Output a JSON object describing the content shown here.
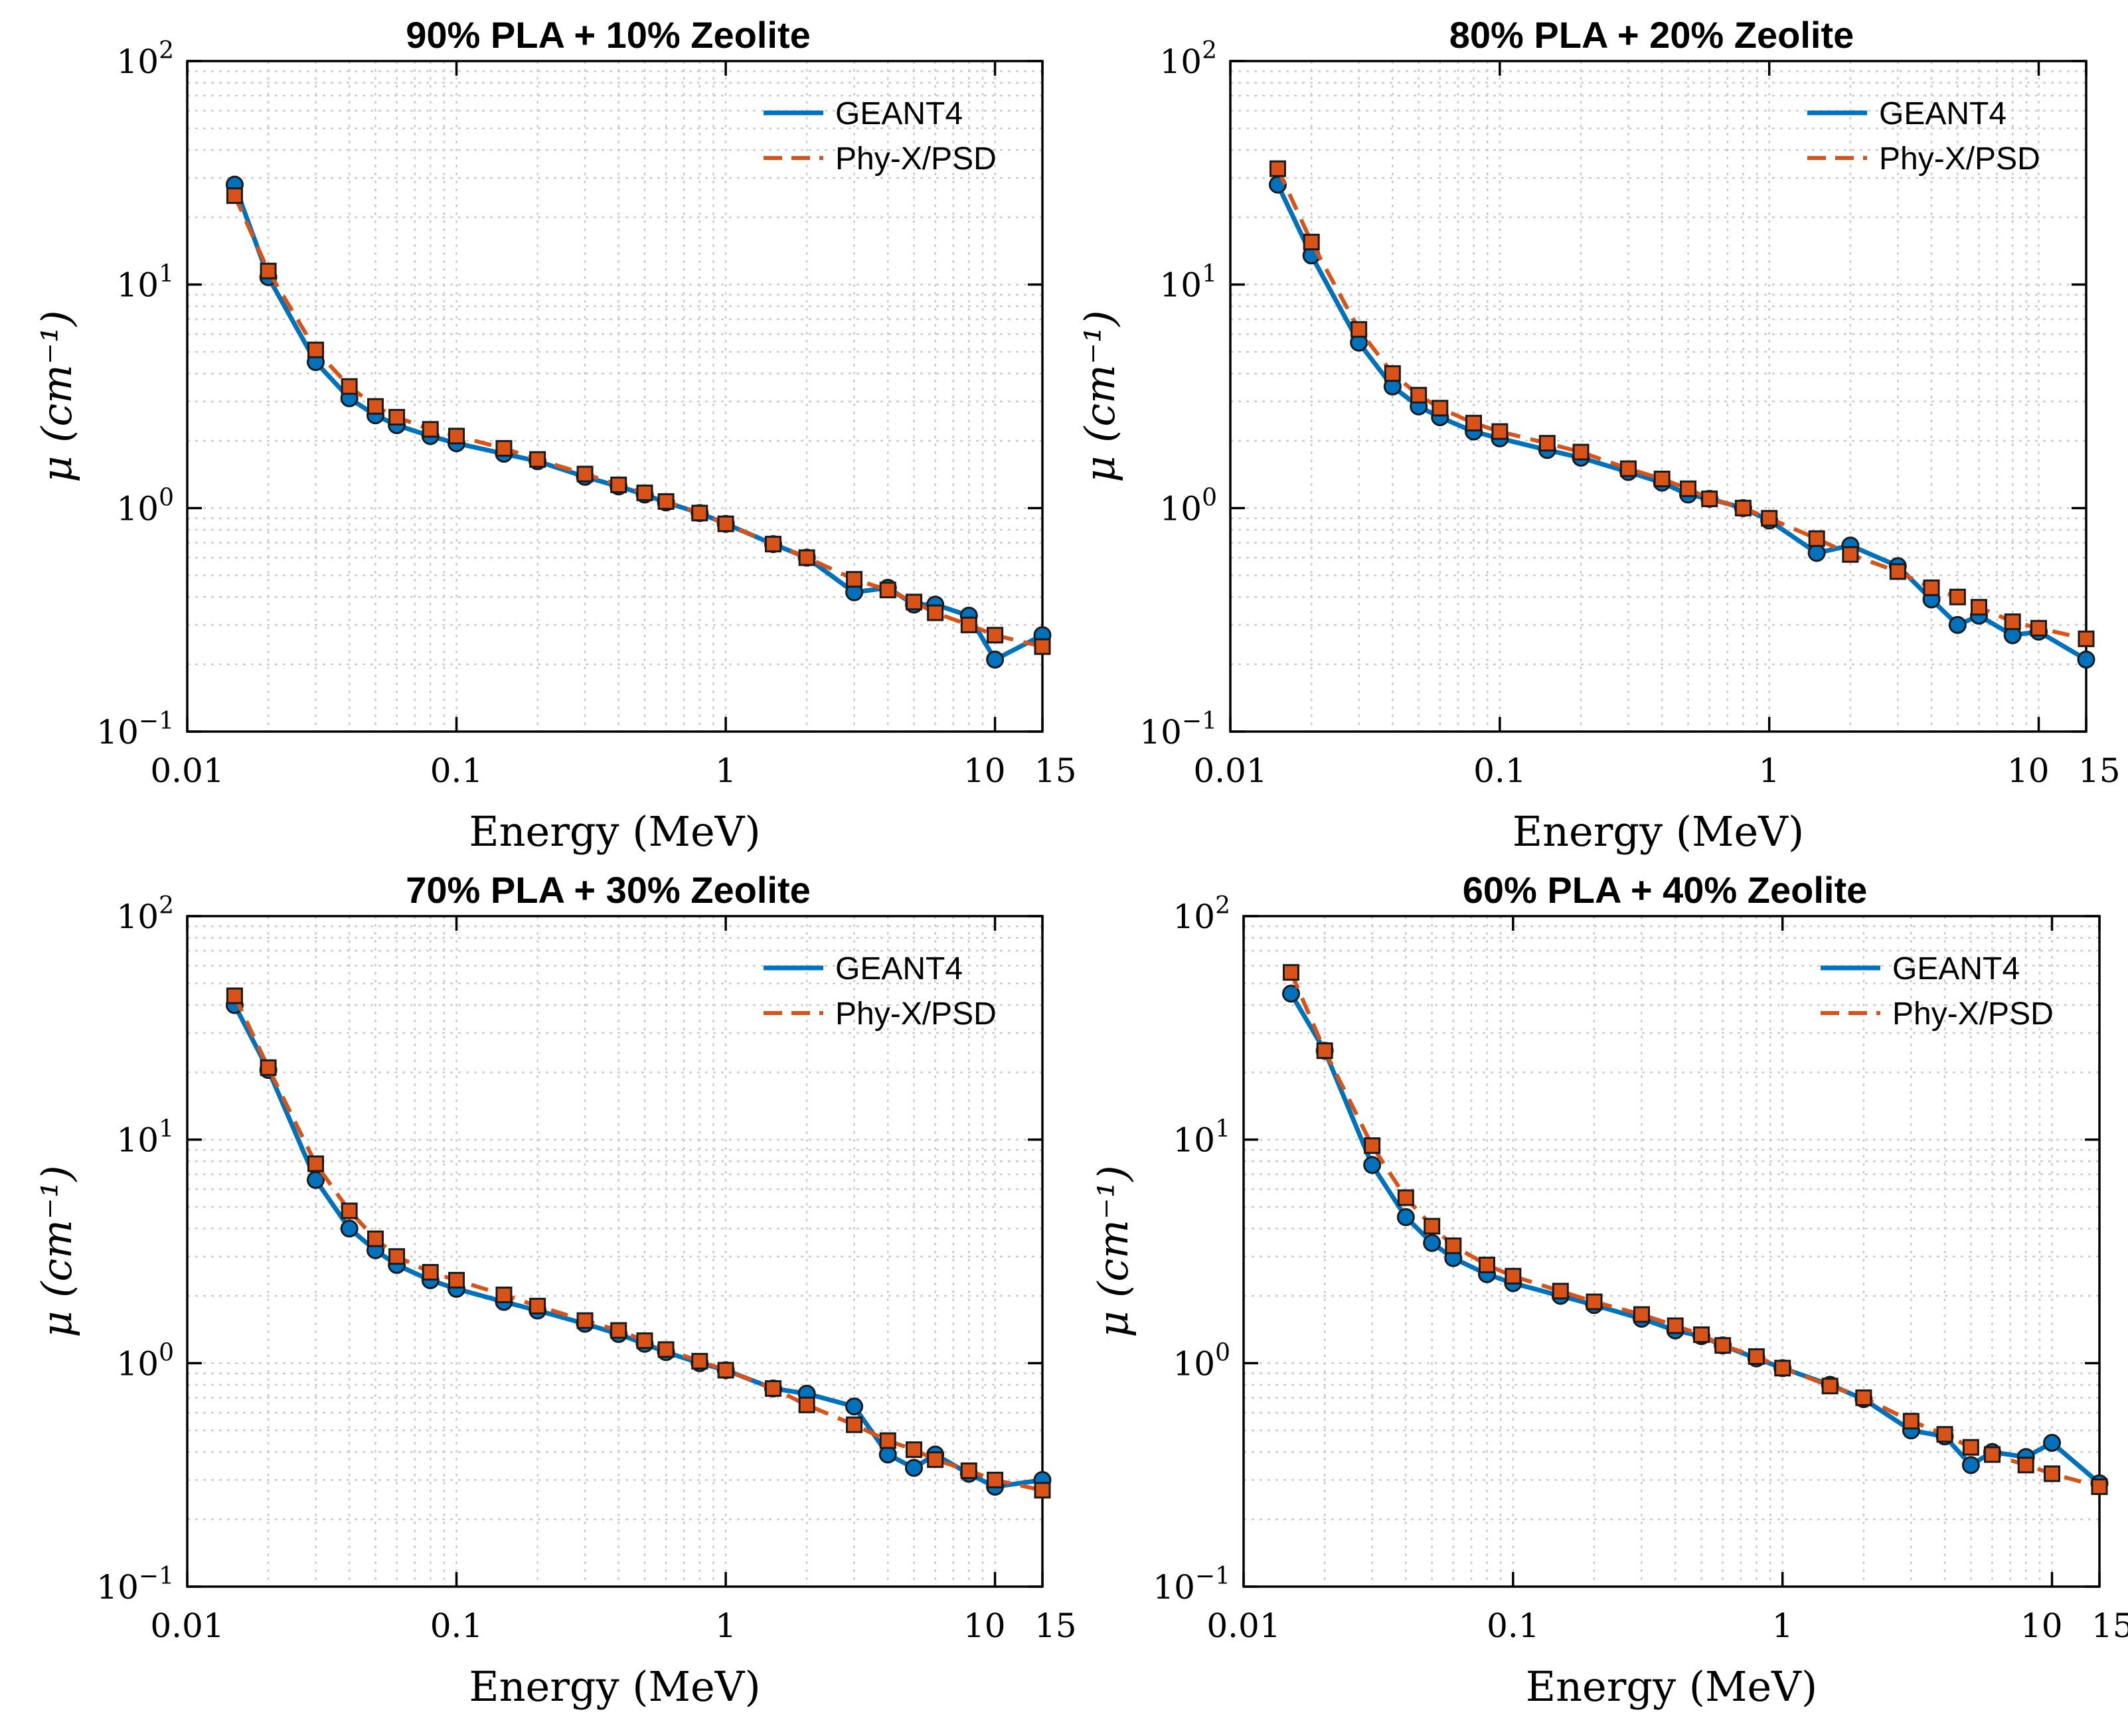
{
  "chart_data": [
    {
      "type": "line",
      "title": "90% PLA + 10% Zeolite",
      "xlabel": "Energy (MeV)",
      "ylabel": "μ (cm⁻¹)",
      "xscale": "log",
      "yscale": "log",
      "xlim": [
        0.01,
        15
      ],
      "ylim": [
        0.1,
        100
      ],
      "grid": true,
      "legend_position": "top-right",
      "xticks": [
        {
          "v": 0.01,
          "label": "0.01"
        },
        {
          "v": 0.1,
          "label": "0.1"
        },
        {
          "v": 1,
          "label": "1"
        },
        {
          "v": 10,
          "label": "10"
        },
        {
          "v": 15,
          "label": "15"
        }
      ],
      "yticks": [
        {
          "v": 0.1,
          "label": "10",
          "exp": "−1"
        },
        {
          "v": 1,
          "label": "10",
          "exp": "0"
        },
        {
          "v": 10,
          "label": "10",
          "exp": "1"
        },
        {
          "v": 100,
          "label": "10",
          "exp": "2"
        }
      ],
      "x": [
        0.015,
        0.02,
        0.03,
        0.04,
        0.05,
        0.06,
        0.08,
        0.1,
        0.15,
        0.2,
        0.3,
        0.4,
        0.5,
        0.6,
        0.8,
        1,
        1.5,
        2,
        3,
        4,
        5,
        6,
        8,
        10,
        15
      ],
      "series": [
        {
          "name": "GEANT4",
          "values": [
            28,
            10.8,
            4.5,
            3.1,
            2.6,
            2.35,
            2.1,
            1.95,
            1.75,
            1.62,
            1.38,
            1.25,
            1.15,
            1.06,
            0.95,
            0.85,
            0.69,
            0.6,
            0.42,
            0.44,
            0.37,
            0.37,
            0.33,
            0.21,
            0.27
          ]
        },
        {
          "name": "Phy-X/PSD",
          "values": [
            25,
            11.5,
            5.1,
            3.5,
            2.85,
            2.55,
            2.25,
            2.1,
            1.85,
            1.65,
            1.42,
            1.27,
            1.17,
            1.07,
            0.95,
            0.85,
            0.69,
            0.6,
            0.48,
            0.43,
            0.38,
            0.34,
            0.3,
            0.27,
            0.24
          ]
        }
      ]
    },
    {
      "type": "line",
      "title": "80% PLA + 20% Zeolite",
      "xlabel": "Energy (MeV)",
      "ylabel": "μ (cm⁻¹)",
      "xscale": "log",
      "yscale": "log",
      "xlim": [
        0.01,
        15
      ],
      "ylim": [
        0.1,
        100
      ],
      "grid": true,
      "legend_position": "top-right",
      "xticks": [
        {
          "v": 0.01,
          "label": "0.01"
        },
        {
          "v": 0.1,
          "label": "0.1"
        },
        {
          "v": 1,
          "label": "1"
        },
        {
          "v": 10,
          "label": "10"
        },
        {
          "v": 15,
          "label": "15"
        }
      ],
      "yticks": [
        {
          "v": 0.1,
          "label": "10",
          "exp": "−1"
        },
        {
          "v": 1,
          "label": "10",
          "exp": "0"
        },
        {
          "v": 10,
          "label": "10",
          "exp": "1"
        },
        {
          "v": 100,
          "label": "10",
          "exp": "2"
        }
      ],
      "x": [
        0.015,
        0.02,
        0.03,
        0.04,
        0.05,
        0.06,
        0.08,
        0.1,
        0.15,
        0.2,
        0.3,
        0.4,
        0.5,
        0.6,
        0.8,
        1,
        1.5,
        2,
        3,
        4,
        5,
        6,
        8,
        10,
        15
      ],
      "series": [
        {
          "name": "GEANT4",
          "values": [
            28,
            13.5,
            5.5,
            3.5,
            2.85,
            2.55,
            2.2,
            2.05,
            1.82,
            1.68,
            1.45,
            1.3,
            1.15,
            1.1,
            1.0,
            0.88,
            0.63,
            0.68,
            0.55,
            0.39,
            0.3,
            0.33,
            0.27,
            0.28,
            0.21
          ]
        },
        {
          "name": "Phy-X/PSD",
          "values": [
            33,
            15.5,
            6.3,
            4.0,
            3.2,
            2.8,
            2.4,
            2.2,
            1.95,
            1.78,
            1.5,
            1.35,
            1.22,
            1.1,
            1.0,
            0.9,
            0.73,
            0.62,
            0.52,
            0.44,
            0.4,
            0.36,
            0.31,
            0.29,
            0.26
          ]
        }
      ]
    },
    {
      "type": "line",
      "title": "70% PLA + 30% Zeolite",
      "xlabel": "Energy (MeV)",
      "ylabel": "μ (cm⁻¹)",
      "xscale": "log",
      "yscale": "log",
      "xlim": [
        0.01,
        15
      ],
      "ylim": [
        0.1,
        100
      ],
      "grid": true,
      "legend_position": "top-right",
      "xticks": [
        {
          "v": 0.01,
          "label": "0.01"
        },
        {
          "v": 0.1,
          "label": "0.1"
        },
        {
          "v": 1,
          "label": "1"
        },
        {
          "v": 10,
          "label": "10"
        },
        {
          "v": 15,
          "label": "15"
        }
      ],
      "yticks": [
        {
          "v": 0.1,
          "label": "10",
          "exp": "−1"
        },
        {
          "v": 1,
          "label": "10",
          "exp": "0"
        },
        {
          "v": 10,
          "label": "10",
          "exp": "1"
        },
        {
          "v": 100,
          "label": "10",
          "exp": "2"
        }
      ],
      "x": [
        0.015,
        0.02,
        0.03,
        0.04,
        0.05,
        0.06,
        0.08,
        0.1,
        0.15,
        0.2,
        0.3,
        0.4,
        0.5,
        0.6,
        0.8,
        1,
        1.5,
        2,
        3,
        4,
        5,
        6,
        8,
        10,
        15
      ],
      "series": [
        {
          "name": "GEANT4",
          "values": [
            40,
            20.5,
            6.6,
            4.0,
            3.2,
            2.75,
            2.35,
            2.15,
            1.88,
            1.72,
            1.5,
            1.35,
            1.22,
            1.12,
            1.0,
            0.93,
            0.77,
            0.73,
            0.64,
            0.39,
            0.34,
            0.39,
            0.32,
            0.28,
            0.3
          ]
        },
        {
          "name": "Phy-X/PSD",
          "values": [
            44,
            21,
            7.8,
            4.8,
            3.6,
            3.0,
            2.55,
            2.35,
            2.02,
            1.8,
            1.55,
            1.4,
            1.26,
            1.15,
            1.02,
            0.93,
            0.77,
            0.65,
            0.53,
            0.45,
            0.41,
            0.37,
            0.33,
            0.3,
            0.27
          ]
        }
      ]
    },
    {
      "type": "line",
      "title": "60% PLA + 40% Zeolite",
      "xlabel": "Energy (MeV)",
      "ylabel": "μ (cm⁻¹)",
      "xscale": "log",
      "yscale": "log",
      "xlim": [
        0.01,
        15
      ],
      "ylim": [
        0.1,
        100
      ],
      "grid": true,
      "legend_position": "top-right",
      "xticks": [
        {
          "v": 0.01,
          "label": "0.01"
        },
        {
          "v": 0.1,
          "label": "0.1"
        },
        {
          "v": 1,
          "label": "1"
        },
        {
          "v": 10,
          "label": "10"
        },
        {
          "v": 15,
          "label": "15"
        }
      ],
      "yticks": [
        {
          "v": 0.1,
          "label": "10",
          "exp": "−1"
        },
        {
          "v": 1,
          "label": "10",
          "exp": "0"
        },
        {
          "v": 10,
          "label": "10",
          "exp": "1"
        },
        {
          "v": 100,
          "label": "10",
          "exp": "2"
        }
      ],
      "x": [
        0.015,
        0.02,
        0.03,
        0.04,
        0.05,
        0.06,
        0.08,
        0.1,
        0.15,
        0.2,
        0.3,
        0.4,
        0.5,
        0.6,
        0.8,
        1,
        1.5,
        2,
        3,
        4,
        5,
        6,
        8,
        10,
        15
      ],
      "series": [
        {
          "name": "GEANT4",
          "values": [
            45,
            25,
            7.7,
            4.5,
            3.45,
            2.95,
            2.5,
            2.28,
            2.0,
            1.82,
            1.58,
            1.4,
            1.32,
            1.2,
            1.05,
            0.95,
            0.8,
            0.69,
            0.5,
            0.47,
            0.35,
            0.4,
            0.38,
            0.44,
            0.29
          ]
        },
        {
          "name": "Phy-X/PSD",
          "values": [
            56,
            25,
            9.4,
            5.5,
            4.1,
            3.35,
            2.75,
            2.45,
            2.1,
            1.88,
            1.65,
            1.47,
            1.34,
            1.2,
            1.07,
            0.95,
            0.79,
            0.7,
            0.55,
            0.48,
            0.42,
            0.39,
            0.35,
            0.32,
            0.28
          ]
        }
      ]
    }
  ],
  "colors": {
    "geant4": "#0072bd",
    "phyx": "#d95319",
    "grid": "#cccccc",
    "axis": "#000000"
  }
}
